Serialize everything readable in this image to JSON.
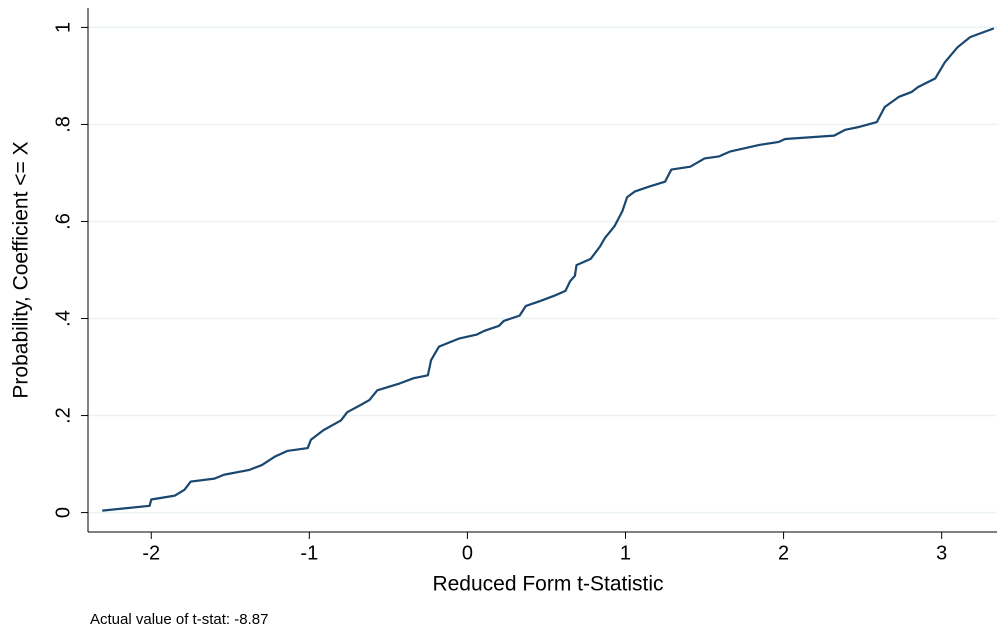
{
  "chart_data": {
    "type": "line",
    "xlabel": "Reduced Form t-Statistic",
    "ylabel": "Probability, Coefficient <= X",
    "note": "Actual value of t-stat: -8.87",
    "color": "#1a476f",
    "grid": true,
    "xlim": [
      -2.4,
      3.35
    ],
    "ylim": [
      -0.04,
      1.04
    ],
    "xticks": [
      -2,
      -1,
      0,
      1,
      2,
      3
    ],
    "yticks": [
      0,
      {
        "value": 0.2,
        "label": ".2"
      },
      {
        "value": 0.4,
        "label": ".4"
      },
      {
        "value": 0.6,
        "label": ".6"
      },
      {
        "value": 0.8,
        "label": ".8"
      },
      1
    ],
    "x": [
      -2.31,
      -2.01,
      -2.0,
      -1.85,
      -1.79,
      -1.75,
      -1.6,
      -1.54,
      -1.38,
      -1.3,
      -1.22,
      -1.14,
      -1.01,
      -0.99,
      -0.91,
      -0.8,
      -0.76,
      -0.68,
      -0.62,
      -0.57,
      -0.43,
      -0.34,
      -0.25,
      -0.23,
      -0.18,
      -0.05,
      0.06,
      0.11,
      0.2,
      0.23,
      0.33,
      0.37,
      0.46,
      0.55,
      0.62,
      0.65,
      0.68,
      0.69,
      0.78,
      0.84,
      0.87,
      0.93,
      0.98,
      1.01,
      1.06,
      1.15,
      1.25,
      1.29,
      1.41,
      1.5,
      1.59,
      1.66,
      1.85,
      1.97,
      2.01,
      2.32,
      2.39,
      2.48,
      2.59,
      2.64,
      2.73,
      2.81,
      2.85,
      2.96,
      3.02,
      3.1,
      3.18,
      3.33
    ],
    "values": [
      0.004,
      0.014,
      0.027,
      0.035,
      0.047,
      0.064,
      0.07,
      0.078,
      0.088,
      0.098,
      0.115,
      0.127,
      0.133,
      0.15,
      0.17,
      0.19,
      0.207,
      0.221,
      0.232,
      0.252,
      0.266,
      0.277,
      0.283,
      0.314,
      0.342,
      0.359,
      0.367,
      0.375,
      0.385,
      0.395,
      0.406,
      0.426,
      0.436,
      0.447,
      0.457,
      0.477,
      0.488,
      0.51,
      0.523,
      0.549,
      0.566,
      0.59,
      0.621,
      0.65,
      0.662,
      0.672,
      0.682,
      0.707,
      0.713,
      0.73,
      0.734,
      0.744,
      0.758,
      0.764,
      0.77,
      0.777,
      0.789,
      0.795,
      0.805,
      0.836,
      0.857,
      0.867,
      0.877,
      0.895,
      0.928,
      0.959,
      0.98,
      0.998
    ]
  }
}
